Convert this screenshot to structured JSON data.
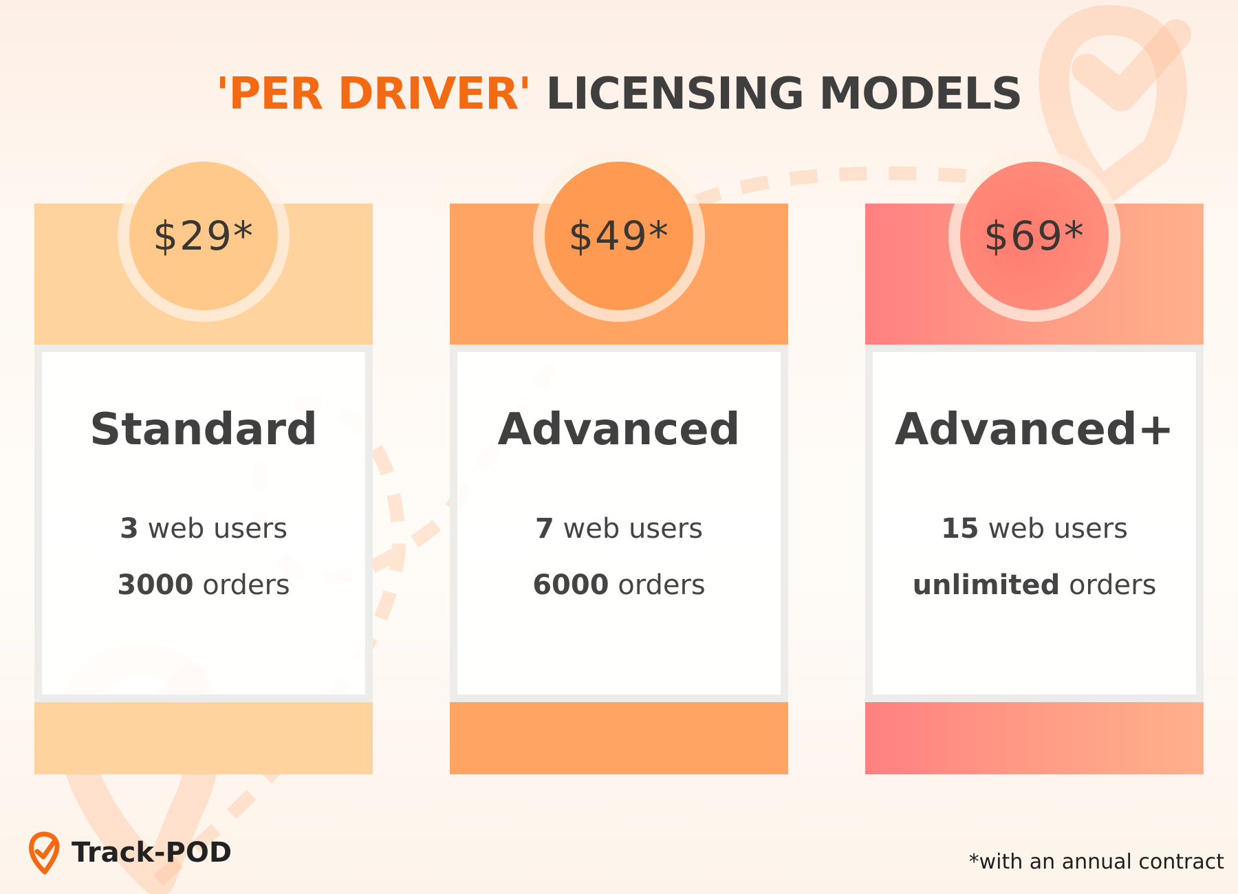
{
  "title": {
    "accent": "'PER DRIVER'",
    "rest": "LICENSING MODELS"
  },
  "colors": {
    "accent": "#f46a12",
    "standard": "#fed39d",
    "advanced": "#ffa462",
    "advanced_plus": "#ff8a80"
  },
  "plans": [
    {
      "price": "$29*",
      "name": "Standard",
      "users_num": "3",
      "users_text": "web users",
      "orders_num": "3000",
      "orders_text": "orders"
    },
    {
      "price": "$49*",
      "name": "Advanced",
      "users_num": "7",
      "users_text": "web users",
      "orders_num": "6000",
      "orders_text": "orders"
    },
    {
      "price": "$69*",
      "name": "Advanced+",
      "users_num": "15",
      "users_text": "web users",
      "orders_num": "unlimited",
      "orders_text": "orders"
    }
  ],
  "logo": {
    "icon": "location-check-icon",
    "name": "Track-POD"
  },
  "footnote": "*with an annual contract"
}
